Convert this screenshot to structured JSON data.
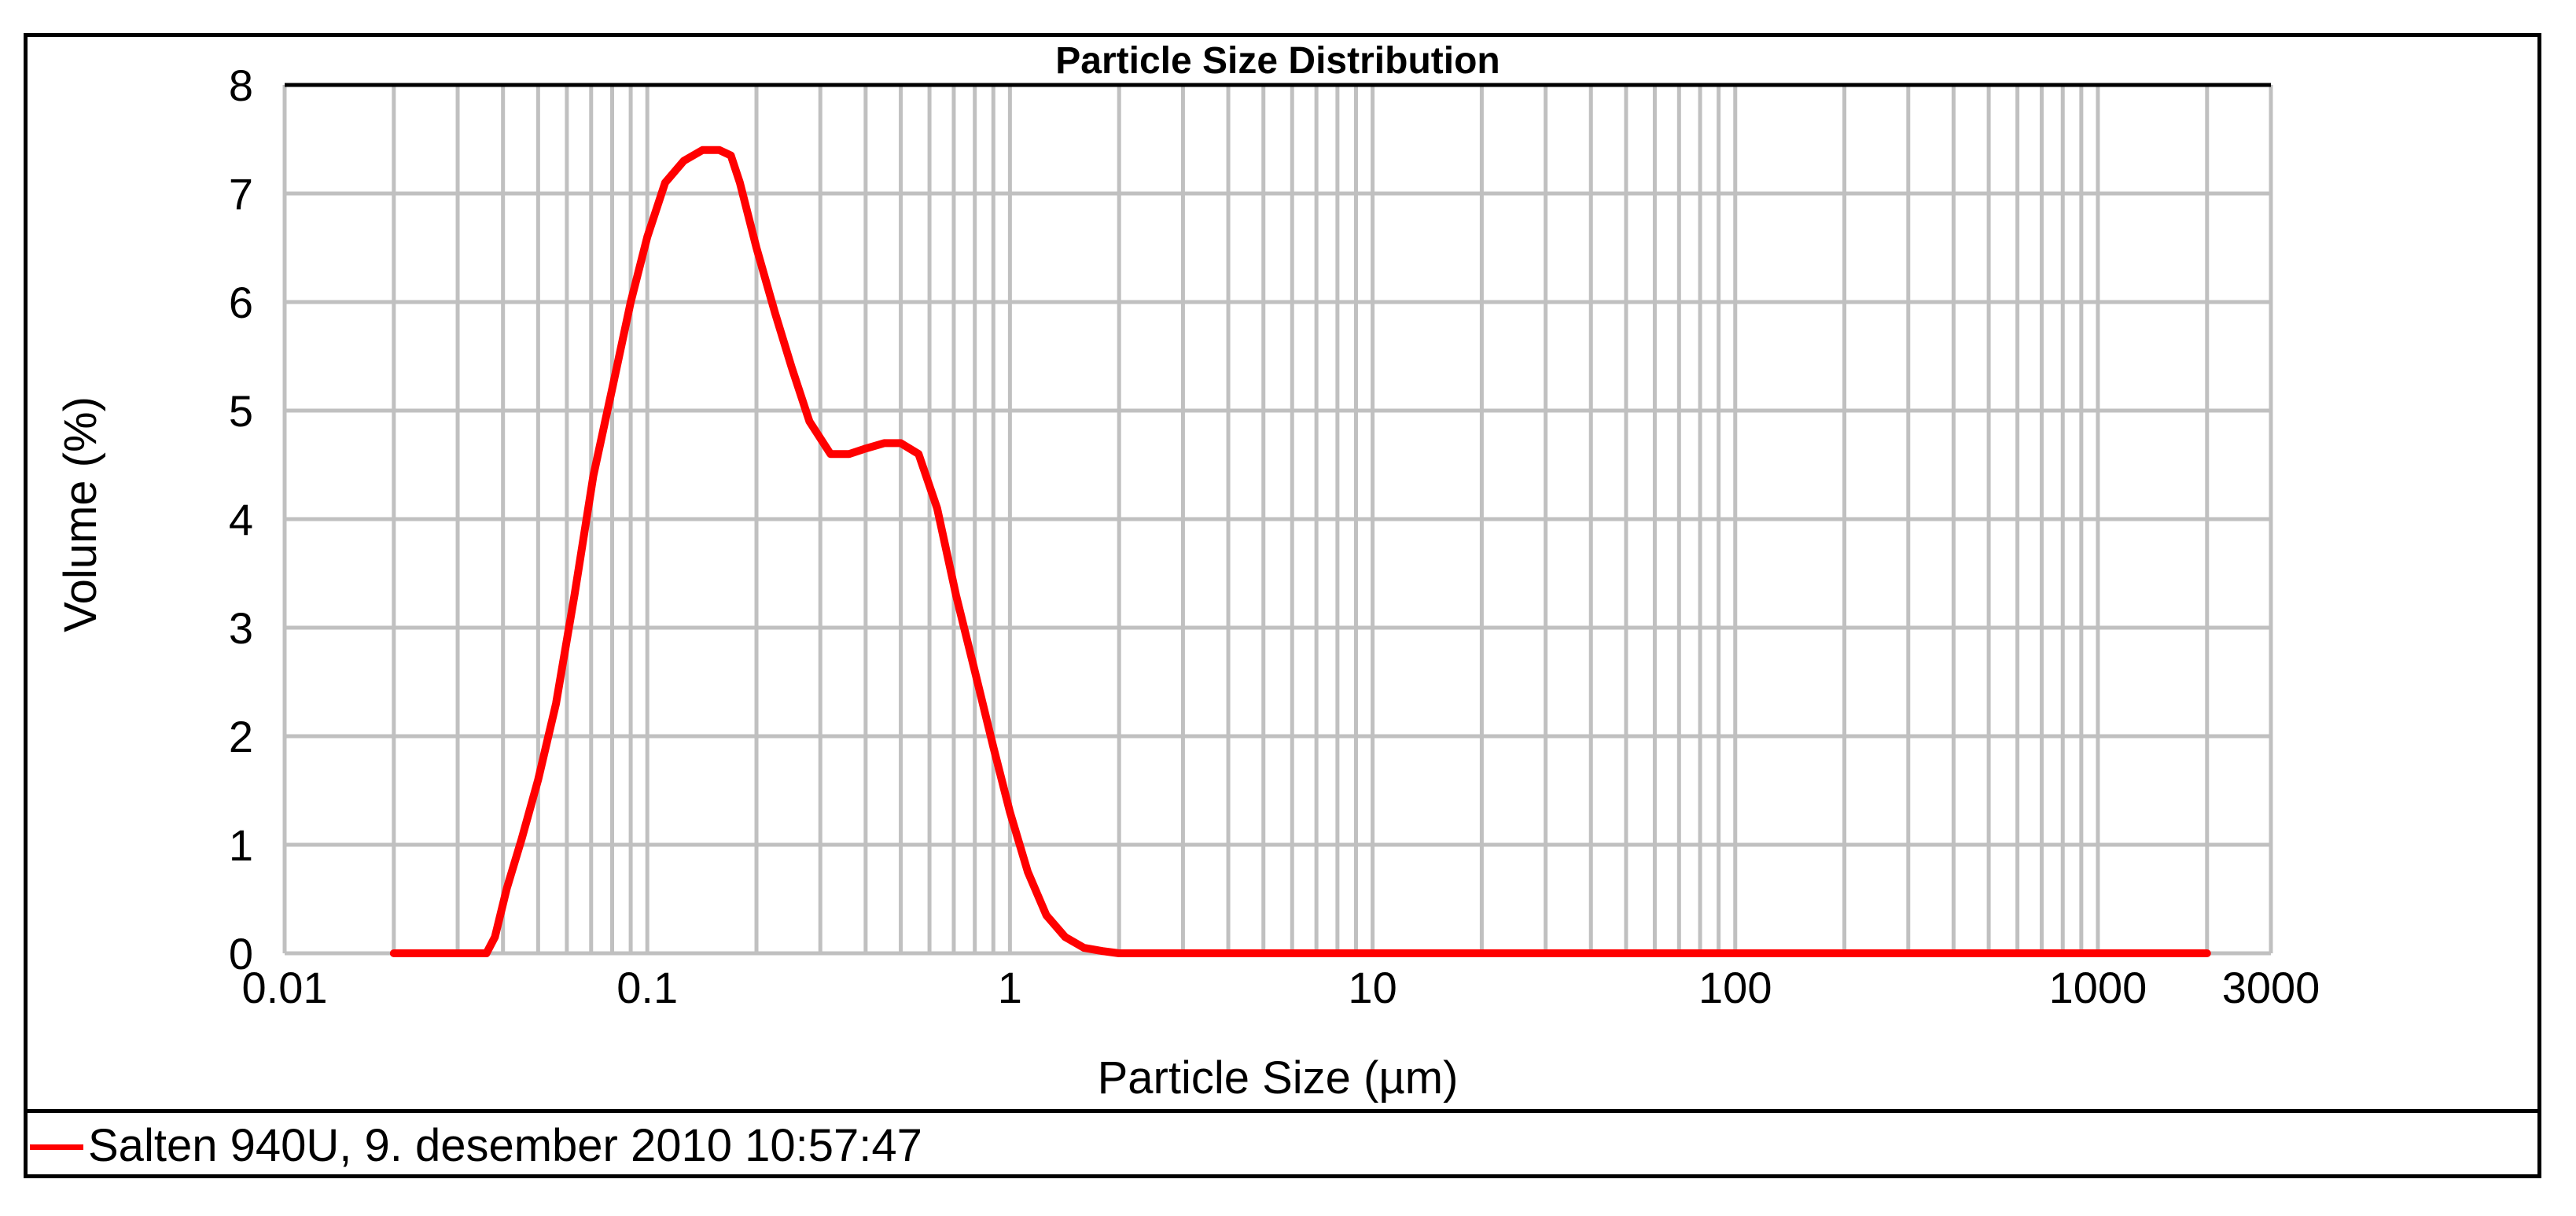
{
  "chart_data": {
    "type": "line",
    "title": "Particle Size Distribution",
    "xlabel": "Particle Size (µm)",
    "ylabel": "Volume (%)",
    "x_scale": "log",
    "xlim": [
      0.01,
      3000
    ],
    "ylim": [
      0,
      8
    ],
    "x_tick_labels": [
      "0.01",
      "0.1",
      "1",
      "10",
      "100",
      "1000",
      "3000"
    ],
    "y_tick_labels": [
      "0",
      "1",
      "2",
      "3",
      "4",
      "5",
      "6",
      "7",
      "8"
    ],
    "grid": true,
    "legend_position": "bottom-left",
    "series": [
      {
        "name": "Salten 940U, 9. desember 2010 10:57:47",
        "color": "#ff0000",
        "x": [
          0.02,
          0.03,
          0.036,
          0.038,
          0.041,
          0.045,
          0.05,
          0.056,
          0.063,
          0.071,
          0.08,
          0.09,
          0.1,
          0.112,
          0.126,
          0.142,
          0.158,
          0.17,
          0.18,
          0.2,
          0.225,
          0.25,
          0.28,
          0.32,
          0.36,
          0.4,
          0.45,
          0.5,
          0.56,
          0.63,
          0.71,
          0.8,
          0.9,
          1.0,
          1.12,
          1.26,
          1.42,
          1.6,
          1.8,
          2.0,
          10,
          100,
          1000,
          2000
        ],
        "y": [
          0,
          0,
          0,
          0.15,
          0.6,
          1.05,
          1.6,
          2.3,
          3.3,
          4.4,
          5.2,
          6.0,
          6.6,
          7.1,
          7.3,
          7.4,
          7.4,
          7.35,
          7.1,
          6.5,
          5.9,
          5.4,
          4.9,
          4.6,
          4.6,
          4.65,
          4.7,
          4.7,
          4.6,
          4.1,
          3.3,
          2.6,
          1.9,
          1.3,
          0.75,
          0.35,
          0.15,
          0.05,
          0.02,
          0,
          0,
          0,
          0,
          0
        ]
      }
    ]
  }
}
